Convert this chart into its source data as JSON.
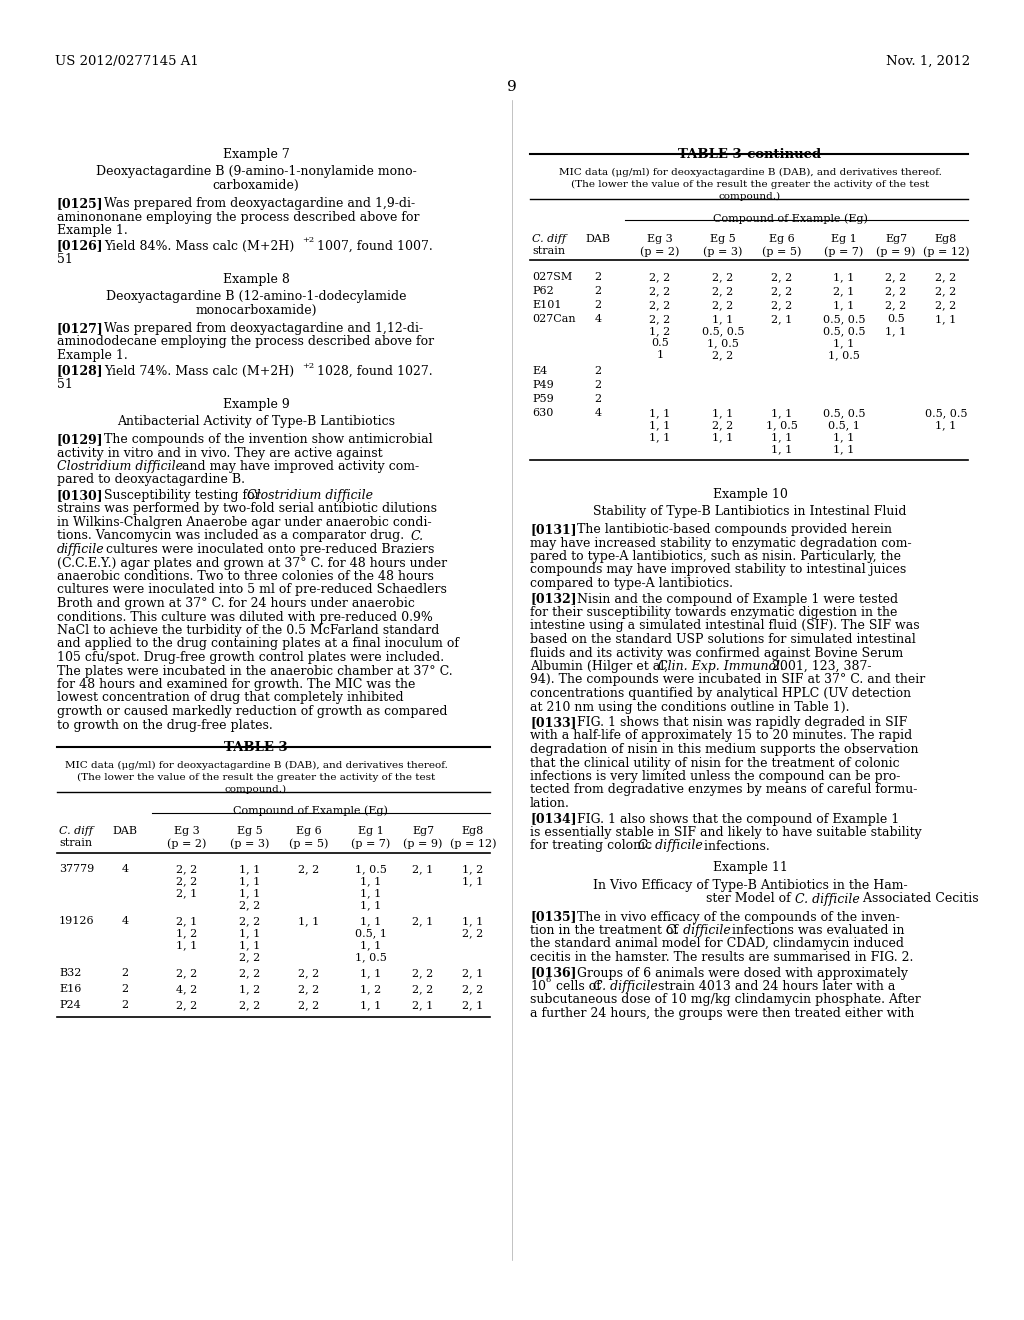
{
  "patent_number": "US 2012/0277145 A1",
  "date": "Nov. 1, 2012",
  "page_number": "9",
  "bg": "#ffffff"
}
